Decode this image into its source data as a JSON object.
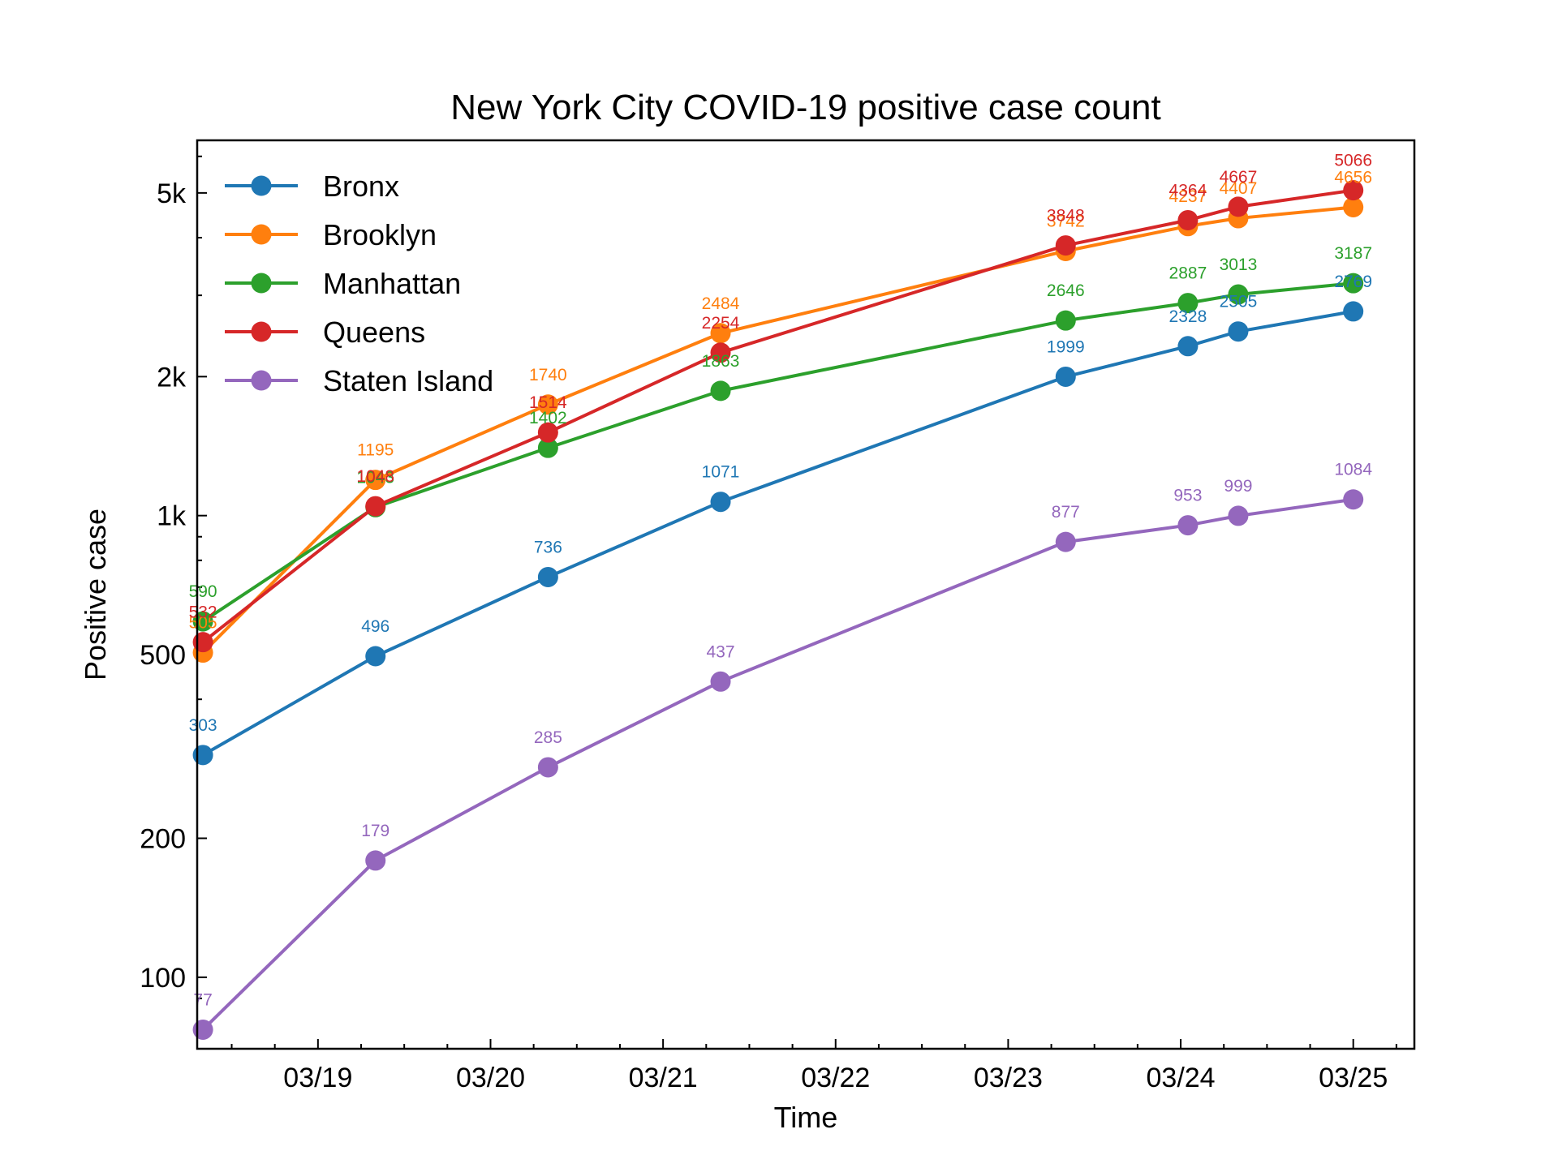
{
  "chart_data": {
    "type": "line",
    "title": "New York City COVID-19 positive case count",
    "xlabel": "Time",
    "ylabel": "Positive case",
    "yscale": "log",
    "ylim": [
      70,
      6500
    ],
    "xlim": [
      "2020-03-18T19:12",
      "2020-03-25T20:30"
    ],
    "x_ticks": [
      "03/19",
      "03/20",
      "03/21",
      "03/22",
      "03/23",
      "03/24",
      "03/25"
    ],
    "y_ticks": [
      {
        "value": 100,
        "label": "100"
      },
      {
        "value": 200,
        "label": "200"
      },
      {
        "value": 500,
        "label": "500"
      },
      {
        "value": 1000,
        "label": "1k"
      },
      {
        "value": 2000,
        "label": "2k"
      },
      {
        "value": 5000,
        "label": "5k"
      }
    ],
    "x": [
      "2020-03-18T20:00",
      "2020-03-19T20:00",
      "2020-03-20T20:00",
      "2020-03-21T20:00",
      "2020-03-23T20:00",
      "2020-03-24T13:00",
      "2020-03-24T20:00",
      "2020-03-25T12:00"
    ],
    "legend": "top-left",
    "grid": false,
    "series": [
      {
        "name": "Bronx",
        "color": "#1f77b4",
        "values": [
          303,
          496,
          736,
          1071,
          1999,
          2328,
          2505,
          2769
        ]
      },
      {
        "name": "Brooklyn",
        "color": "#ff7f0e",
        "values": [
          505,
          1195,
          1740,
          2484,
          3742,
          4237,
          4407,
          4656
        ]
      },
      {
        "name": "Manhattan",
        "color": "#2ca02c",
        "values": [
          590,
          1043,
          1402,
          1863,
          2646,
          2887,
          3013,
          3187
        ]
      },
      {
        "name": "Queens",
        "color": "#d62728",
        "values": [
          532,
          1048,
          1514,
          2254,
          3848,
          4364,
          4667,
          5066
        ]
      },
      {
        "name": "Staten Island",
        "color": "#9467bd",
        "values": [
          77,
          179,
          285,
          437,
          877,
          953,
          999,
          1084
        ]
      }
    ]
  }
}
